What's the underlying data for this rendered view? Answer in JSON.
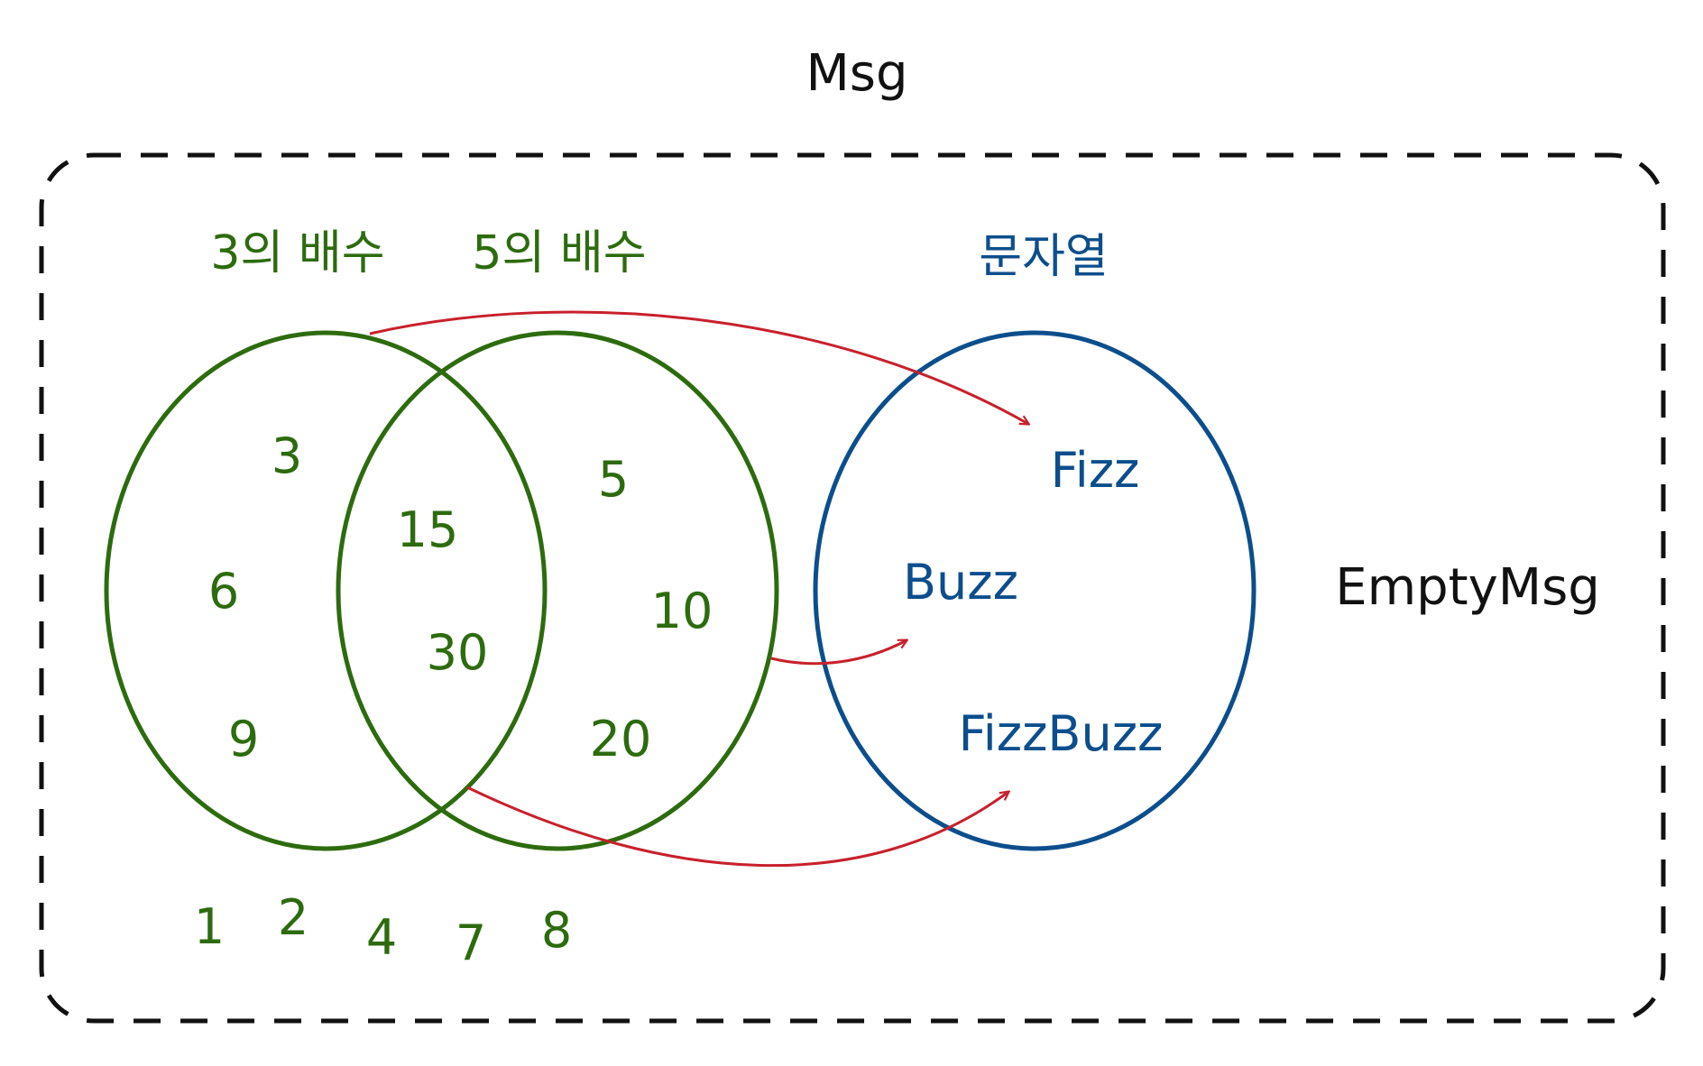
{
  "title": "Msg",
  "outside_label": "EmptyMsg",
  "colors": {
    "green": "#2d6b0e",
    "blue": "#0c4e8c",
    "red": "#c8202c",
    "black": "#111111"
  },
  "sets": {
    "multiples_of_3": {
      "title": "3의 배수",
      "only": [
        "3",
        "6",
        "9"
      ]
    },
    "multiples_of_5": {
      "title": "5의 배수",
      "only": [
        "5",
        "10",
        "20"
      ]
    },
    "intersection": [
      "15",
      "30"
    ],
    "strings": {
      "title": "문자열",
      "items": [
        "Fizz",
        "Buzz",
        "FizzBuzz"
      ]
    }
  },
  "others": [
    "1",
    "2",
    "4",
    "7",
    "8"
  ],
  "arrows": [
    {
      "from": "3의 배수",
      "to": "Fizz"
    },
    {
      "from": "5의 배수",
      "to": "Buzz"
    },
    {
      "from": "15, 30",
      "to": "FizzBuzz"
    }
  ]
}
